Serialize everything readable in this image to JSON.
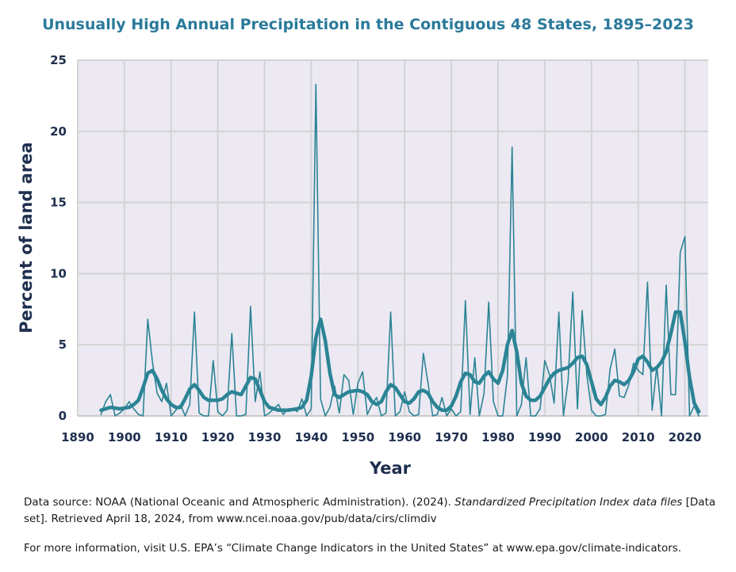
{
  "chart_data": {
    "type": "line",
    "title": "Unusually High Annual Precipitation in the Contiguous 48 States, 1895–2023",
    "xlabel": "Year",
    "ylabel": "Percent of land area",
    "xlim": [
      1890,
      2025
    ],
    "ylim": [
      0,
      25
    ],
    "x_ticks": [
      1890,
      1900,
      1910,
      1920,
      1930,
      1940,
      1950,
      1960,
      1970,
      1980,
      1990,
      2000,
      2010,
      2020
    ],
    "y_ticks": [
      0,
      5,
      10,
      15,
      20,
      25
    ],
    "grid": true,
    "legend": "none",
    "colors": {
      "annual": "#2b8495",
      "smoothed": "#2b8495",
      "plot_bg": "#ece9f3",
      "grid": "#d3d3d3",
      "axis_text": "#1f2f4f",
      "title": "#2b7a9b"
    },
    "series": [
      {
        "style": "thin",
        "x": [
          1895,
          1896,
          1897,
          1898,
          1899,
          1900,
          1901,
          1902,
          1903,
          1904,
          1905,
          1906,
          1907,
          1908,
          1909,
          1910,
          1911,
          1912,
          1913,
          1914,
          1915,
          1916,
          1917,
          1918,
          1919,
          1920,
          1921,
          1922,
          1923,
          1924,
          1925,
          1926,
          1927,
          1928,
          1929,
          1930,
          1931,
          1932,
          1933,
          1934,
          1935,
          1936,
          1937,
          1938,
          1939,
          1940,
          1941,
          1942,
          1943,
          1944,
          1945,
          1946,
          1947,
          1948,
          1949,
          1950,
          1951,
          1952,
          1953,
          1954,
          1955,
          1956,
          1957,
          1958,
          1959,
          1960,
          1961,
          1962,
          1963,
          1964,
          1965,
          1966,
          1967,
          1968,
          1969,
          1970,
          1971,
          1972,
          1973,
          1974,
          1975,
          1976,
          1977,
          1978,
          1979,
          1980,
          1981,
          1982,
          1983,
          1984,
          1985,
          1986,
          1987,
          1988,
          1989,
          1990,
          1991,
          1992,
          1993,
          1994,
          1995,
          1996,
          1997,
          1998,
          1999,
          2000,
          2001,
          2002,
          2003,
          2004,
          2005,
          2006,
          2007,
          2008,
          2009,
          2010,
          2011,
          2012,
          2013,
          2014,
          2015,
          2016,
          2017,
          2018,
          2019,
          2020,
          2021,
          2022,
          2023
        ],
        "values": [
          0.1,
          1.0,
          1.5,
          0.0,
          0.2,
          0.5,
          1.0,
          0.5,
          0.1,
          0.0,
          6.8,
          3.8,
          1.6,
          1.0,
          2.3,
          0.0,
          0.4,
          0.8,
          0.0,
          0.8,
          7.3,
          0.2,
          0.0,
          0.0,
          3.9,
          0.3,
          0.0,
          0.4,
          5.8,
          0.0,
          0.0,
          0.1,
          7.7,
          1.0,
          3.1,
          0.0,
          0.2,
          0.5,
          0.8,
          0.1,
          0.5,
          0.5,
          0.3,
          1.2,
          0.0,
          0.5,
          23.3,
          1.2,
          0.0,
          0.6,
          2.1,
          0.2,
          2.9,
          2.5,
          0.1,
          2.3,
          3.1,
          0.1,
          0.8,
          1.3,
          0.0,
          0.2,
          7.3,
          0.0,
          0.3,
          1.7,
          0.3,
          0.0,
          0.1,
          4.4,
          2.3,
          0.0,
          0.1,
          1.3,
          0.0,
          0.5,
          0.0,
          0.3,
          8.1,
          0.1,
          4.1,
          0.0,
          1.6,
          8.0,
          1.0,
          0.0,
          0.0,
          2.8,
          18.9,
          0.0,
          0.8,
          4.1,
          0.0,
          0.0,
          0.5,
          3.9,
          2.9,
          0.9,
          7.3,
          0.0,
          2.5,
          8.7,
          0.5,
          7.4,
          2.9,
          0.4,
          0.0,
          0.0,
          0.1,
          3.3,
          4.7,
          1.4,
          1.3,
          2.2,
          3.7,
          3.2,
          2.9,
          9.4,
          0.4,
          3.5,
          0.0,
          9.2,
          1.5,
          1.5,
          11.5,
          12.6,
          0.0,
          0.7,
          0.0
        ]
      },
      {
        "style": "thick",
        "x": [
          1895,
          1897,
          1899,
          1901,
          1902,
          1903,
          1904,
          1905,
          1906,
          1907,
          1908,
          1909,
          1910,
          1911,
          1912,
          1913,
          1914,
          1915,
          1916,
          1917,
          1918,
          1920,
          1921,
          1922,
          1923,
          1924,
          1925,
          1926,
          1927,
          1928,
          1929,
          1930,
          1931,
          1933,
          1935,
          1937,
          1938,
          1939,
          1940,
          1941,
          1942,
          1943,
          1944,
          1945,
          1946,
          1948,
          1950,
          1951,
          1952,
          1953,
          1954,
          1955,
          1956,
          1957,
          1958,
          1959,
          1960,
          1961,
          1962,
          1963,
          1964,
          1965,
          1966,
          1967,
          1968,
          1969,
          1970,
          1971,
          1972,
          1973,
          1974,
          1975,
          1976,
          1977,
          1978,
          1979,
          1980,
          1981,
          1982,
          1983,
          1984,
          1985,
          1986,
          1987,
          1988,
          1989,
          1990,
          1991,
          1992,
          1993,
          1995,
          1996,
          1997,
          1998,
          1999,
          2000,
          2001,
          2002,
          2003,
          2004,
          2005,
          2006,
          2007,
          2008,
          2009,
          2010,
          2011,
          2012,
          2013,
          2014,
          2015,
          2016,
          2017,
          2018,
          2019,
          2020,
          2021,
          2022,
          2023
        ],
        "values": [
          0.4,
          0.6,
          0.5,
          0.6,
          0.8,
          1.1,
          2.0,
          3.0,
          3.2,
          2.6,
          1.8,
          1.2,
          0.8,
          0.6,
          0.6,
          1.2,
          1.9,
          2.2,
          1.8,
          1.3,
          1.1,
          1.1,
          1.2,
          1.5,
          1.7,
          1.6,
          1.5,
          2.1,
          2.7,
          2.6,
          1.8,
          1.0,
          0.6,
          0.4,
          0.4,
          0.5,
          0.6,
          1.1,
          2.8,
          5.5,
          6.8,
          5.3,
          3.0,
          1.5,
          1.3,
          1.7,
          1.8,
          1.7,
          1.5,
          1.0,
          0.8,
          1.0,
          1.7,
          2.2,
          2.0,
          1.5,
          1.0,
          0.9,
          1.2,
          1.7,
          1.8,
          1.6,
          1.0,
          0.6,
          0.4,
          0.4,
          0.7,
          1.4,
          2.4,
          3.0,
          2.9,
          2.4,
          2.3,
          2.8,
          3.1,
          2.6,
          2.3,
          3.2,
          5.0,
          6.0,
          4.5,
          2.3,
          1.4,
          1.1,
          1.1,
          1.4,
          2.0,
          2.6,
          3.0,
          3.2,
          3.4,
          3.7,
          4.1,
          4.2,
          3.6,
          2.4,
          1.2,
          0.8,
          1.3,
          2.1,
          2.5,
          2.4,
          2.2,
          2.5,
          3.1,
          4.0,
          4.2,
          3.8,
          3.2,
          3.4,
          3.8,
          4.5,
          5.8,
          7.3,
          7.3,
          5.2,
          2.7,
          0.9,
          0.3
        ]
      }
    ]
  },
  "footer": {
    "source_prefix": "Data source: NOAA (National Oceanic and Atmospheric Administration). (2024). ",
    "source_italic": "Standardized Precipitation Index data files",
    "source_suffix": " [Data set]. Retrieved April 18, 2024, from www.ncei.noaa.gov/pub/data/cirs/climdiv",
    "info": "For more information, visit U.S. EPA’s “Climate Change Indicators in the United States” at www.epa.gov/climate-indicators."
  }
}
